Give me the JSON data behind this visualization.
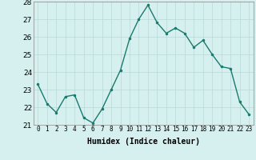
{
  "x": [
    0,
    1,
    2,
    3,
    4,
    5,
    6,
    7,
    8,
    9,
    10,
    11,
    12,
    13,
    14,
    15,
    16,
    17,
    18,
    19,
    20,
    21,
    22,
    23
  ],
  "y": [
    23.3,
    22.2,
    21.7,
    22.6,
    22.7,
    21.4,
    21.1,
    21.9,
    23.0,
    24.1,
    25.9,
    27.0,
    27.8,
    26.8,
    26.2,
    26.5,
    26.2,
    25.4,
    25.8,
    25.0,
    24.3,
    24.2,
    22.3,
    21.6
  ],
  "xlabel": "Humidex (Indice chaleur)",
  "ylim": [
    21,
    28
  ],
  "xlim": [
    -0.5,
    23.5
  ],
  "yticks": [
    21,
    22,
    23,
    24,
    25,
    26,
    27,
    28
  ],
  "xticks": [
    0,
    1,
    2,
    3,
    4,
    5,
    6,
    7,
    8,
    9,
    10,
    11,
    12,
    13,
    14,
    15,
    16,
    17,
    18,
    19,
    20,
    21,
    22,
    23
  ],
  "line_color": "#1a7a6e",
  "marker_color": "#1a7a6e",
  "bg_color": "#d6f0f0",
  "grid_color": "#b8d8d8",
  "spine_color": "#888888",
  "xlabel_fontsize": 7,
  "xtick_fontsize": 5.5,
  "ytick_fontsize": 6.5,
  "linewidth": 1.0,
  "markersize": 3
}
